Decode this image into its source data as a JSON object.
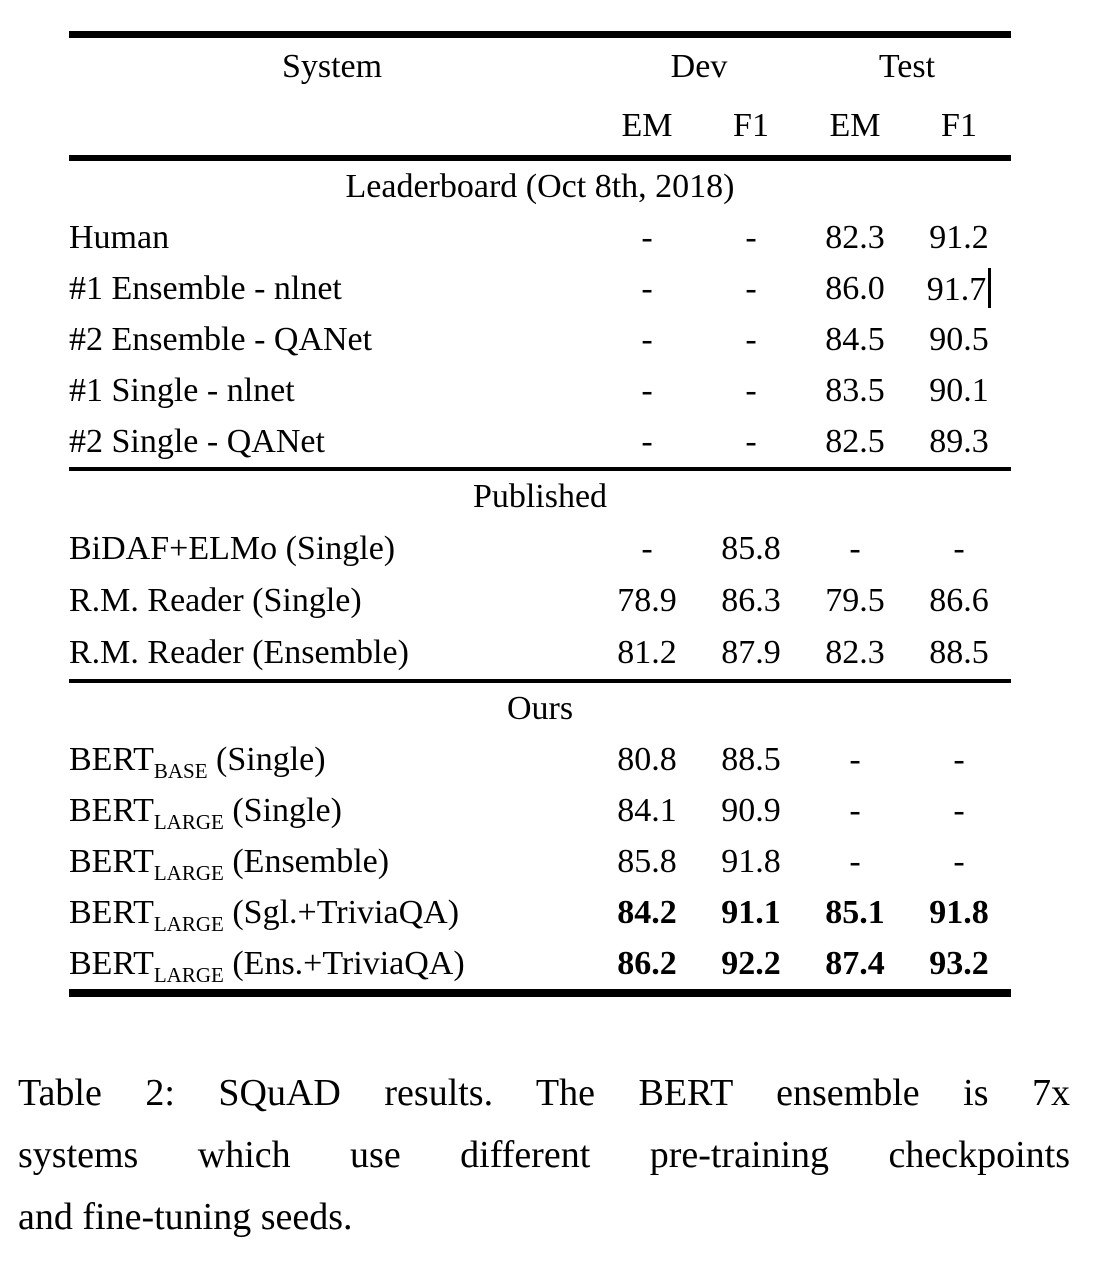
{
  "colors": {
    "text": "#000000",
    "background": "#ffffff",
    "rule": "#000000"
  },
  "table": {
    "header": {
      "system": "System",
      "dev": "Dev",
      "test": "Test",
      "sub": [
        "EM",
        "F1",
        "EM",
        "F1"
      ]
    },
    "sections": [
      {
        "title": "Leaderboard (Oct 8th, 2018)",
        "rows": [
          {
            "system": "Human",
            "dev_em": "-",
            "dev_f1": "-",
            "test_em": "82.3",
            "test_f1": "91.2"
          },
          {
            "system": "#1 Ensemble - nlnet",
            "dev_em": "-",
            "dev_f1": "-",
            "test_em": "86.0",
            "test_f1": "91.7",
            "has_text_cursor": true
          },
          {
            "system": "#2 Ensemble - QANet",
            "dev_em": "-",
            "dev_f1": "-",
            "test_em": "84.5",
            "test_f1": "90.5"
          },
          {
            "system": "#1 Single - nlnet",
            "dev_em": "-",
            "dev_f1": "-",
            "test_em": "83.5",
            "test_f1": "90.1"
          },
          {
            "system": "#2 Single - QANet",
            "dev_em": "-",
            "dev_f1": "-",
            "test_em": "82.5",
            "test_f1": "89.3"
          }
        ]
      },
      {
        "title": "Published",
        "rows": [
          {
            "system": "BiDAF+ELMo (Single)",
            "dev_em": "-",
            "dev_f1": "85.8",
            "test_em": "-",
            "test_f1": "-"
          },
          {
            "system": "R.M. Reader (Single)",
            "dev_em": "78.9",
            "dev_f1": "86.3",
            "test_em": "79.5",
            "test_f1": "86.6"
          },
          {
            "system": "R.M. Reader (Ensemble)",
            "dev_em": "81.2",
            "dev_f1": "87.9",
            "test_em": "82.3",
            "test_f1": "88.5"
          }
        ]
      },
      {
        "title": "Ours",
        "rows": [
          {
            "system_base": "BERT",
            "system_sub": "BASE",
            "system_rest": " (Single)",
            "dev_em": "80.8",
            "dev_f1": "88.5",
            "test_em": "-",
            "test_f1": "-",
            "bold": false
          },
          {
            "system_base": "BERT",
            "system_sub": "LARGE",
            "system_rest": " (Single)",
            "dev_em": "84.1",
            "dev_f1": "90.9",
            "test_em": "-",
            "test_f1": "-",
            "bold": false
          },
          {
            "system_base": "BERT",
            "system_sub": "LARGE",
            "system_rest": " (Ensemble)",
            "dev_em": "85.8",
            "dev_f1": "91.8",
            "test_em": "-",
            "test_f1": "-",
            "bold": false
          },
          {
            "system_base": "BERT",
            "system_sub": "LARGE",
            "system_rest": " (Sgl.+TriviaQA)",
            "dev_em": "84.2",
            "dev_f1": "91.1",
            "test_em": "85.1",
            "test_f1": "91.8",
            "bold": true
          },
          {
            "system_base": "BERT",
            "system_sub": "LARGE",
            "system_rest": " (Ens.+TriviaQA)",
            "dev_em": "86.2",
            "dev_f1": "92.2",
            "test_em": "87.4",
            "test_f1": "93.2",
            "bold": true
          }
        ]
      }
    ]
  },
  "caption": {
    "lines": [
      "Table 2: SQuAD results. The BERT ensemble is 7x",
      "systems which use different pre-training checkpoints",
      "and fine-tuning seeds."
    ]
  }
}
